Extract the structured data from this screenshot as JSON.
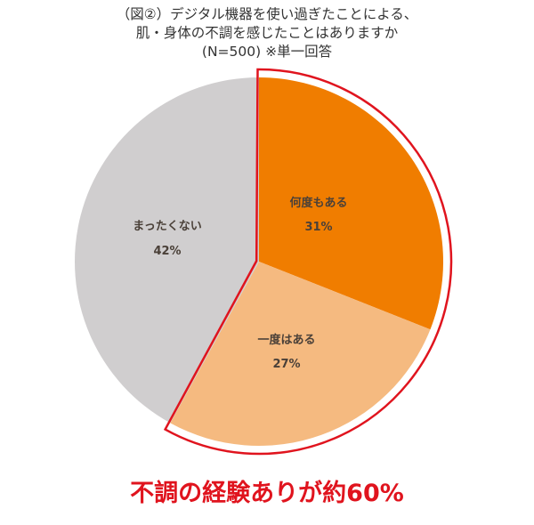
{
  "chart_data": {
    "type": "pie",
    "title": "（図②）デジタル機器を使い過ぎたことによる、肌・身体の不調を感じたことはありますか (N=500) ※単一回答",
    "title_lines": [
      "（図②）デジタル機器を使い過ぎたことによる、",
      "肌・身体の不調を感じたことはありますか",
      "(N=500) ※単一回答"
    ],
    "categories": [
      "何度もある",
      "一度はある",
      "まったくない"
    ],
    "values": [
      31,
      27,
      42
    ],
    "value_labels": [
      "31%",
      "27%",
      "42%"
    ],
    "colors": [
      "#F07D00",
      "#F5BA80",
      "#D0CECF"
    ],
    "start_angle_deg": 0,
    "direction": "clockwise",
    "highlight": {
      "slices": [
        "何度もある",
        "一度はある"
      ],
      "outline_color": "#E0141E",
      "annotation": "不調の経験ありが約60%"
    },
    "sample_size": "N=500",
    "answer_type": "※単一回答"
  }
}
